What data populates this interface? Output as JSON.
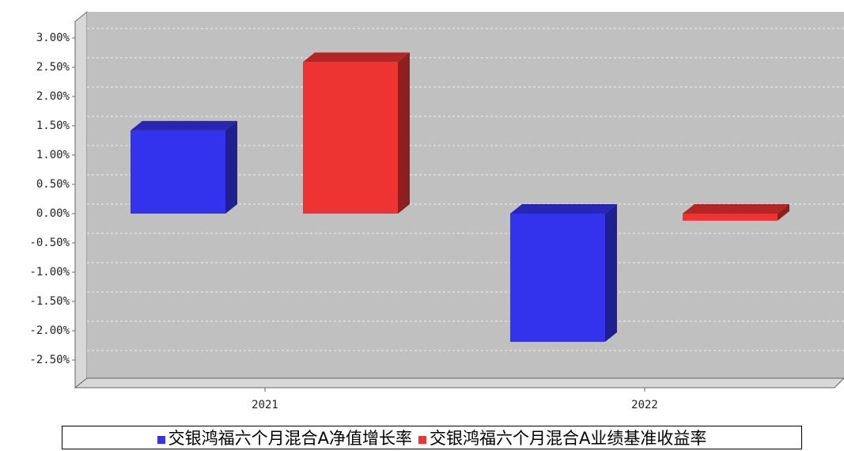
{
  "chart_data": {
    "type": "bar3d",
    "categories": [
      "2021",
      "2022"
    ],
    "series": [
      {
        "name": "交银鸿福六个月混合A净值增长率",
        "color": "#3333ee",
        "values": [
          1.42,
          -2.19
        ]
      },
      {
        "name": "交银鸿福六个月混合A业绩基准收益率",
        "color": "#ee3333",
        "values": [
          2.59,
          -0.12
        ]
      }
    ],
    "ylim": [
      -2.9,
      3.3
    ],
    "yticks": [
      {
        "value": -2.5,
        "label": "-2.50%"
      },
      {
        "value": -2,
        "label": "-2.00%"
      },
      {
        "value": -1.5,
        "label": "-1.50%"
      },
      {
        "value": -1,
        "label": "-1.00%"
      },
      {
        "value": -0.5,
        "label": "-0.50%"
      },
      {
        "value": 0,
        "label": "0.00%"
      },
      {
        "value": 0.5,
        "label": "0.50%"
      },
      {
        "value": 1,
        "label": "1.00%"
      },
      {
        "value": 1.5,
        "label": "1.50%"
      },
      {
        "value": 2,
        "label": "2.00%"
      },
      {
        "value": 2.5,
        "label": "2.50%"
      },
      {
        "value": 3,
        "label": "3.00%"
      }
    ],
    "grid": true
  }
}
